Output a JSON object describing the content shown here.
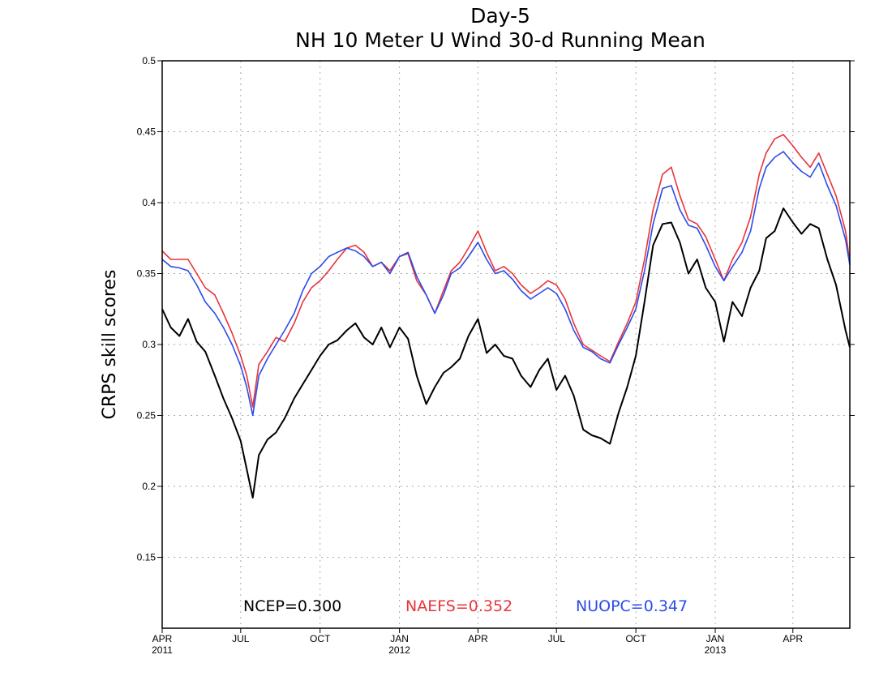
{
  "chart_data": {
    "type": "line",
    "title": "Day-5",
    "subtitle": "NH 10 Meter U Wind 30-d Running Mean",
    "ylabel": "CRPS skill scores",
    "xlabel": "",
    "ylim": [
      0.1,
      0.5
    ],
    "xlim": [
      "2011-04-01",
      "2013-06-06"
    ],
    "grid": true,
    "y_ticks": [
      "0.15",
      "0.2",
      "0.25",
      "0.3",
      "0.35",
      "0.4",
      "0.45",
      "0.5"
    ],
    "x_ticks": [
      {
        "date": "2011-04-01",
        "label": "APR",
        "year": "2011"
      },
      {
        "date": "2011-07-01",
        "label": "JUL",
        "year": ""
      },
      {
        "date": "2011-10-01",
        "label": "OCT",
        "year": ""
      },
      {
        "date": "2012-01-01",
        "label": "JAN",
        "year": "2012"
      },
      {
        "date": "2012-04-01",
        "label": "APR",
        "year": ""
      },
      {
        "date": "2012-07-01",
        "label": "JUL",
        "year": ""
      },
      {
        "date": "2012-10-01",
        "label": "OCT",
        "year": ""
      },
      {
        "date": "2013-01-01",
        "label": "JAN",
        "year": "2013"
      },
      {
        "date": "2013-04-01",
        "label": "APR",
        "year": ""
      }
    ],
    "x": [
      "2011-04-01",
      "2011-04-11",
      "2011-04-21",
      "2011-05-01",
      "2011-05-11",
      "2011-05-21",
      "2011-06-01",
      "2011-06-11",
      "2011-06-21",
      "2011-07-01",
      "2011-07-08",
      "2011-07-15",
      "2011-07-22",
      "2011-08-01",
      "2011-08-11",
      "2011-08-21",
      "2011-09-01",
      "2011-09-11",
      "2011-09-21",
      "2011-10-01",
      "2011-10-11",
      "2011-10-21",
      "2011-11-01",
      "2011-11-11",
      "2011-11-21",
      "2011-12-01",
      "2011-12-11",
      "2011-12-21",
      "2012-01-01",
      "2012-01-11",
      "2012-01-21",
      "2012-02-01",
      "2012-02-11",
      "2012-02-21",
      "2012-03-01",
      "2012-03-11",
      "2012-03-21",
      "2012-04-01",
      "2012-04-11",
      "2012-04-21",
      "2012-05-01",
      "2012-05-11",
      "2012-05-21",
      "2012-06-01",
      "2012-06-11",
      "2012-06-21",
      "2012-07-01",
      "2012-07-11",
      "2012-07-21",
      "2012-08-01",
      "2012-08-11",
      "2012-08-21",
      "2012-09-01",
      "2012-09-11",
      "2012-09-21",
      "2012-10-01",
      "2012-10-11",
      "2012-10-21",
      "2012-11-01",
      "2012-11-11",
      "2012-11-21",
      "2012-12-01",
      "2012-12-11",
      "2012-12-21",
      "2013-01-01",
      "2013-01-11",
      "2013-01-21",
      "2013-02-01",
      "2013-02-11",
      "2013-02-21",
      "2013-03-01",
      "2013-03-11",
      "2013-03-21",
      "2013-04-01",
      "2013-04-11",
      "2013-04-21",
      "2013-05-01",
      "2013-05-11",
      "2013-05-21",
      "2013-06-01",
      "2013-06-06"
    ],
    "series": [
      {
        "name": "NCEP",
        "color": "#000000",
        "width": 2,
        "values": [
          0.325,
          0.312,
          0.306,
          0.318,
          0.302,
          0.295,
          0.278,
          0.262,
          0.248,
          0.232,
          0.212,
          0.192,
          0.222,
          0.233,
          0.238,
          0.248,
          0.262,
          0.272,
          0.282,
          0.292,
          0.3,
          0.303,
          0.31,
          0.315,
          0.305,
          0.3,
          0.312,
          0.298,
          0.312,
          0.304,
          0.278,
          0.258,
          0.27,
          0.28,
          0.284,
          0.29,
          0.306,
          0.318,
          0.294,
          0.3,
          0.292,
          0.29,
          0.278,
          0.27,
          0.282,
          0.29,
          0.268,
          0.278,
          0.264,
          0.24,
          0.236,
          0.234,
          0.23,
          0.252,
          0.27,
          0.292,
          0.33,
          0.37,
          0.385,
          0.386,
          0.372,
          0.35,
          0.36,
          0.34,
          0.33,
          0.302,
          0.33,
          0.32,
          0.34,
          0.352,
          0.375,
          0.38,
          0.396,
          0.386,
          0.378,
          0.385,
          0.382,
          0.36,
          0.342,
          0.31,
          0.298
        ]
      },
      {
        "name": "NAEFS",
        "color": "#e8343a",
        "width": 1.6,
        "values": [
          0.366,
          0.36,
          0.36,
          0.36,
          0.35,
          0.34,
          0.335,
          0.322,
          0.308,
          0.292,
          0.278,
          0.256,
          0.286,
          0.295,
          0.305,
          0.302,
          0.315,
          0.33,
          0.34,
          0.345,
          0.352,
          0.36,
          0.368,
          0.37,
          0.365,
          0.355,
          0.358,
          0.352,
          0.362,
          0.364,
          0.345,
          0.335,
          0.322,
          0.338,
          0.352,
          0.358,
          0.368,
          0.38,
          0.365,
          0.352,
          0.355,
          0.35,
          0.342,
          0.336,
          0.34,
          0.345,
          0.342,
          0.332,
          0.315,
          0.3,
          0.296,
          0.292,
          0.288,
          0.302,
          0.315,
          0.33,
          0.36,
          0.395,
          0.42,
          0.425,
          0.405,
          0.388,
          0.385,
          0.376,
          0.36,
          0.345,
          0.36,
          0.372,
          0.39,
          0.42,
          0.435,
          0.445,
          0.448,
          0.44,
          0.432,
          0.425,
          0.435,
          0.42,
          0.405,
          0.38,
          0.358
        ]
      },
      {
        "name": "NUOPC",
        "color": "#2b4be8",
        "width": 1.6,
        "values": [
          0.36,
          0.355,
          0.354,
          0.352,
          0.342,
          0.33,
          0.322,
          0.312,
          0.3,
          0.285,
          0.27,
          0.25,
          0.278,
          0.29,
          0.3,
          0.31,
          0.322,
          0.338,
          0.35,
          0.355,
          0.362,
          0.365,
          0.368,
          0.366,
          0.362,
          0.355,
          0.358,
          0.35,
          0.362,
          0.365,
          0.348,
          0.335,
          0.322,
          0.335,
          0.35,
          0.354,
          0.362,
          0.372,
          0.36,
          0.35,
          0.352,
          0.346,
          0.338,
          0.332,
          0.336,
          0.34,
          0.336,
          0.325,
          0.31,
          0.298,
          0.295,
          0.29,
          0.287,
          0.3,
          0.312,
          0.325,
          0.352,
          0.385,
          0.41,
          0.412,
          0.395,
          0.384,
          0.382,
          0.37,
          0.355,
          0.345,
          0.355,
          0.365,
          0.38,
          0.41,
          0.425,
          0.432,
          0.436,
          0.428,
          0.422,
          0.418,
          0.428,
          0.412,
          0.398,
          0.374,
          0.356
        ]
      }
    ],
    "annotations": [
      {
        "text": "NCEP=0.300",
        "color": "#000000"
      },
      {
        "text": "NAEFS=0.352",
        "color": "#e8343a"
      },
      {
        "text": "NUOPC=0.347",
        "color": "#2b4be8"
      }
    ]
  }
}
